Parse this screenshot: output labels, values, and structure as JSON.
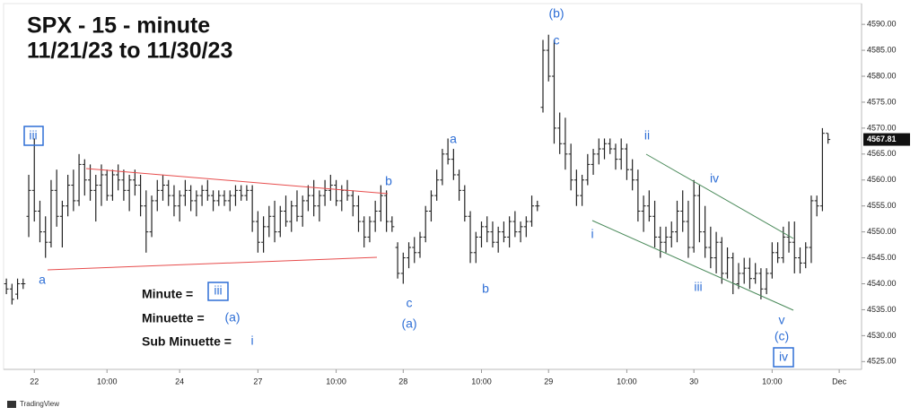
{
  "chart_data": {
    "type": "ohlc",
    "title": "SPX - 15 - minute",
    "subtitle": "11/21/23 to 11/30/23",
    "source": "TradingView",
    "color": "#222222",
    "ylim": [
      4523.5,
      4594
    ],
    "yticks": [
      {
        "value": 4525,
        "label": "4525.00"
      },
      {
        "value": 4530,
        "label": "4530.00"
      },
      {
        "value": 4535,
        "label": "4535.00"
      },
      {
        "value": 4540,
        "label": "4540.00"
      },
      {
        "value": 4545,
        "label": "4545.00"
      },
      {
        "value": 4550,
        "label": "4550.00"
      },
      {
        "value": 4555,
        "label": "4555.00"
      },
      {
        "value": 4560,
        "label": "4560.00"
      },
      {
        "value": 4565,
        "label": "4565.00"
      },
      {
        "value": 4570,
        "label": "4570.00"
      },
      {
        "value": 4575,
        "label": "4575.00"
      },
      {
        "value": 4580,
        "label": "4580.00"
      },
      {
        "value": 4585,
        "label": "4585.00"
      },
      {
        "value": 4590,
        "label": "4590.00"
      }
    ],
    "xlim": [
      0,
      153.5
    ],
    "xticks": [
      {
        "value": 5,
        "label": "22"
      },
      {
        "value": 18,
        "label": "10:00"
      },
      {
        "value": 31,
        "label": "24"
      },
      {
        "value": 45,
        "label": "27"
      },
      {
        "value": 59,
        "label": "10:00"
      },
      {
        "value": 71,
        "label": "28"
      },
      {
        "value": 85,
        "label": "10:00"
      },
      {
        "value": 97,
        "label": "29"
      },
      {
        "value": 111,
        "label": "10:00"
      },
      {
        "value": 123,
        "label": "30"
      },
      {
        "value": 137,
        "label": "10:00"
      },
      {
        "value": 149,
        "label": "Dec"
      }
    ],
    "bars": [
      [
        4540,
        4541,
        4538,
        4539
      ],
      [
        4539,
        4540,
        4536,
        4537
      ],
      [
        4538,
        4541,
        4537,
        4540
      ],
      [
        4540,
        4541,
        4539,
        4540
      ],
      [
        4553,
        4561,
        4549,
        4558
      ],
      [
        4558,
        4568,
        4552,
        4554
      ],
      [
        4554,
        4556,
        4548,
        4550
      ],
      [
        4550,
        4553,
        4545,
        4548
      ],
      [
        4548,
        4560,
        4547,
        4558
      ],
      [
        4558,
        4562,
        4551,
        4553
      ],
      [
        4553,
        4556,
        4547,
        4555
      ],
      [
        4555,
        4561,
        4553,
        4559
      ],
      [
        4559,
        4562,
        4554,
        4556
      ],
      [
        4556,
        4565,
        4555,
        4563
      ],
      [
        4563,
        4564,
        4557,
        4560
      ],
      [
        4560,
        4563,
        4556,
        4558
      ],
      [
        4558,
        4561,
        4552,
        4559
      ],
      [
        4559,
        4563,
        4555,
        4561
      ],
      [
        4561,
        4562,
        4556,
        4557
      ],
      [
        4557,
        4562,
        4556,
        4561
      ],
      [
        4561,
        4563,
        4558,
        4560
      ],
      [
        4560,
        4562,
        4556,
        4558
      ],
      [
        4558,
        4561,
        4554,
        4560
      ],
      [
        4560,
        4562,
        4557,
        4559
      ],
      [
        4559,
        4561,
        4553,
        4555
      ],
      [
        4555,
        4558,
        4546,
        4550
      ],
      [
        4550,
        4557,
        4549,
        4556
      ],
      [
        4556,
        4560,
        4554,
        4558
      ],
      [
        4558,
        4561,
        4556,
        4559
      ],
      [
        4559,
        4560,
        4555,
        4557
      ],
      [
        4557,
        4559,
        4553,
        4555
      ],
      [
        4555,
        4558,
        4552,
        4557
      ],
      [
        4557,
        4560,
        4555,
        4558
      ],
      [
        4558,
        4559,
        4554,
        4556
      ],
      [
        4556,
        4558,
        4553,
        4557
      ],
      [
        4557,
        4559,
        4555,
        4558
      ],
      [
        4558,
        4560,
        4556,
        4557
      ],
      [
        4557,
        4558,
        4554,
        4556
      ],
      [
        4556,
        4558,
        4555,
        4557
      ],
      [
        4557,
        4558,
        4555,
        4556
      ],
      [
        4556,
        4558,
        4554,
        4557
      ],
      [
        4557,
        4559,
        4555,
        4558
      ],
      [
        4558,
        4559,
        4556,
        4557
      ],
      [
        4557,
        4559,
        4556,
        4558
      ],
      [
        4558,
        4559,
        4550,
        4552
      ],
      [
        4552,
        4554,
        4546,
        4548
      ],
      [
        4548,
        4553,
        4546,
        4551
      ],
      [
        4551,
        4555,
        4549,
        4553
      ],
      [
        4553,
        4556,
        4548,
        4550
      ],
      [
        4550,
        4555,
        4549,
        4554
      ],
      [
        4554,
        4557,
        4551,
        4552
      ],
      [
        4552,
        4556,
        4550,
        4555
      ],
      [
        4555,
        4558,
        4552,
        4553
      ],
      [
        4553,
        4557,
        4551,
        4556
      ],
      [
        4556,
        4559,
        4554,
        4557
      ],
      [
        4557,
        4560,
        4553,
        4555
      ],
      [
        4555,
        4558,
        4552,
        4557
      ],
      [
        4557,
        4560,
        4555,
        4558
      ],
      [
        4558,
        4561,
        4556,
        4559
      ],
      [
        4559,
        4560,
        4555,
        4556
      ],
      [
        4556,
        4559,
        4554,
        4558
      ],
      [
        4558,
        4560,
        4556,
        4557
      ],
      [
        4557,
        4558,
        4553,
        4555
      ],
      [
        4555,
        4557,
        4550,
        4552
      ],
      [
        4552,
        4553,
        4547,
        4549
      ],
      [
        4549,
        4553,
        4548,
        4552
      ],
      [
        4552,
        4556,
        4550,
        4554
      ],
      [
        4554,
        4559,
        4552,
        4557
      ],
      [
        4557,
        4558,
        4550,
        4552
      ],
      [
        4552,
        4553,
        4550,
        4551
      ],
      [
        4547,
        4548,
        4541,
        4542
      ],
      [
        4542,
        4546,
        4540,
        4545
      ],
      [
        4545,
        4548,
        4543,
        4547
      ],
      [
        4547,
        4549,
        4544,
        4546
      ],
      [
        4546,
        4550,
        4545,
        4549
      ],
      [
        4549,
        4555,
        4548,
        4554
      ],
      [
        4554,
        4558,
        4552,
        4557
      ],
      [
        4557,
        4562,
        4556,
        4560
      ],
      [
        4560,
        4566,
        4559,
        4565
      ],
      [
        4565,
        4568,
        4563,
        4564
      ],
      [
        4564,
        4566,
        4560,
        4561
      ],
      [
        4561,
        4562,
        4556,
        4558
      ],
      [
        4558,
        4559,
        4552,
        4553
      ],
      [
        4553,
        4554,
        4544,
        4546
      ],
      [
        4546,
        4550,
        4544,
        4549
      ],
      [
        4549,
        4552,
        4547,
        4551
      ],
      [
        4551,
        4553,
        4548,
        4550
      ],
      [
        4550,
        4552,
        4547,
        4548
      ],
      [
        4548,
        4551,
        4546,
        4550
      ],
      [
        4550,
        4552,
        4548,
        4549
      ],
      [
        4549,
        4553,
        4547,
        4552
      ],
      [
        4552,
        4554,
        4549,
        4550
      ],
      [
        4550,
        4552,
        4548,
        4551
      ],
      [
        4551,
        4553,
        4549,
        4552
      ],
      [
        4552,
        4557,
        4551,
        4555
      ],
      [
        4555,
        4556,
        4554,
        4555
      ],
      [
        4574,
        4587,
        4573,
        4585
      ],
      [
        4585,
        4588,
        4579,
        4580
      ],
      [
        4580,
        4587,
        4567,
        4570
      ],
      [
        4570,
        4573,
        4565,
        4567
      ],
      [
        4567,
        4572,
        4562,
        4565
      ],
      [
        4565,
        4567,
        4558,
        4560
      ],
      [
        4560,
        4562,
        4555,
        4557
      ],
      [
        4557,
        4561,
        4555,
        4560
      ],
      [
        4560,
        4565,
        4559,
        4563
      ],
      [
        4563,
        4566,
        4561,
        4565
      ],
      [
        4565,
        4568,
        4563,
        4566
      ],
      [
        4566,
        4568,
        4564,
        4567
      ],
      [
        4567,
        4568,
        4565,
        4566
      ],
      [
        4566,
        4567,
        4562,
        4564
      ],
      [
        4564,
        4568,
        4562,
        4566
      ],
      [
        4566,
        4567,
        4560,
        4562
      ],
      [
        4562,
        4564,
        4558,
        4560
      ],
      [
        4560,
        4562,
        4552,
        4554
      ],
      [
        4554,
        4557,
        4550,
        4555
      ],
      [
        4555,
        4558,
        4552,
        4553
      ],
      [
        4553,
        4556,
        4547,
        4549
      ],
      [
        4549,
        4551,
        4545,
        4548
      ],
      [
        4548,
        4551,
        4546,
        4549
      ],
      [
        4549,
        4552,
        4547,
        4550
      ],
      [
        4550,
        4556,
        4548,
        4554
      ],
      [
        4554,
        4558,
        4550,
        4552
      ],
      [
        4552,
        4556,
        4545,
        4547
      ],
      [
        4547,
        4560,
        4546,
        4557
      ],
      [
        4557,
        4559,
        4548,
        4550
      ],
      [
        4550,
        4555,
        4545,
        4547
      ],
      [
        4547,
        4551,
        4543,
        4545
      ],
      [
        4545,
        4550,
        4542,
        4548
      ],
      [
        4548,
        4549,
        4540,
        4542
      ],
      [
        4542,
        4547,
        4541,
        4545
      ],
      [
        4545,
        4546,
        4538,
        4540
      ],
      [
        4540,
        4544,
        4539,
        4542
      ],
      [
        4542,
        4545,
        4540,
        4543
      ],
      [
        4543,
        4545,
        4539,
        4541
      ],
      [
        4541,
        4544,
        4540,
        4542
      ],
      [
        4542,
        4543,
        4537,
        4539
      ],
      [
        4539,
        4543,
        4538,
        4542
      ],
      [
        4542,
        4548,
        4541,
        4546
      ],
      [
        4546,
        4548,
        4544,
        4545
      ],
      [
        4545,
        4551,
        4544,
        4549
      ],
      [
        4549,
        4552,
        4546,
        4548
      ],
      [
        4548,
        4552,
        4542,
        4545
      ],
      [
        4545,
        4547,
        4542,
        4544
      ],
      [
        4544,
        4548,
        4543,
        4547
      ],
      [
        4547,
        4557,
        4544,
        4556
      ],
      [
        4556,
        4557,
        4553,
        4555
      ],
      [
        4555,
        4570,
        4554,
        4569
      ],
      [
        4569,
        4569,
        4567,
        4567.81
      ]
    ],
    "annotations": [
      "iii",
      "a",
      "b",
      "c",
      "(a)",
      "a",
      "b",
      "(b)",
      "c",
      "i",
      "ii",
      "iv",
      "iii",
      "v",
      "(c)",
      "iv"
    ],
    "legend": [
      {
        "name": "Minute =",
        "label": "iii"
      },
      {
        "name": "Minuette =",
        "label": "(a)"
      },
      {
        "name": "Sub Minuette =",
        "label": "i"
      }
    ]
  }
}
